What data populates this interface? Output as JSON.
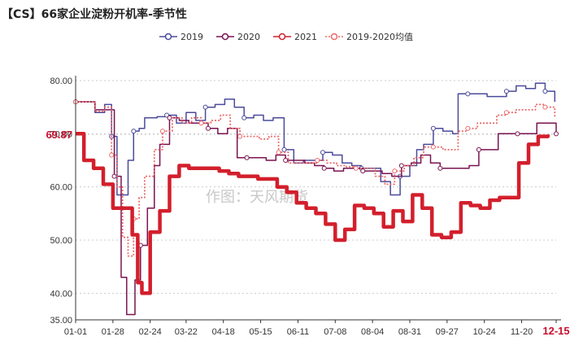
{
  "title": "【CS】66家企业淀粉开机率-季节性",
  "watermark": "作图：天风期货",
  "colors": {
    "s2019": "#4b4b9b",
    "s2020": "#7a1350",
    "s2021": "#d31f2c",
    "savg": "#ec6a6a",
    "axis": "#333333",
    "grid": "#cccccc",
    "accent": "#c8102e"
  },
  "chart_data": {
    "type": "line",
    "title": "【CS】66家企业淀粉开机率-季节性",
    "xlabel": "",
    "ylabel": "",
    "x_ticks": [
      "01-01",
      "01-28",
      "02-24",
      "03-22",
      "04-18",
      "05-15",
      "06-11",
      "07-08",
      "08-04",
      "08-31",
      "09-27",
      "10-24",
      "11-20",
      "12-15"
    ],
    "y_ticks": [
      "35.00",
      "40.00",
      "50.00",
      "60.00",
      "70.00",
      "80.00"
    ],
    "y_tick_values": [
      35,
      40,
      50,
      60,
      70,
      80
    ],
    "ylim": [
      35,
      80
    ],
    "reference_value": 69.87,
    "reference_label": "69.87",
    "legend_position": "top",
    "grid": true,
    "series": [
      {
        "name": "2019",
        "style": "step",
        "marker": "circle",
        "points": [
          [
            "01-01",
            76.0
          ],
          [
            "01-08",
            76.0
          ],
          [
            "01-15",
            74.0
          ],
          [
            "01-22",
            75.5
          ],
          [
            "01-27",
            69.5
          ],
          [
            "01-31",
            58.5
          ],
          [
            "02-04",
            58.5
          ],
          [
            "02-08",
            65.0
          ],
          [
            "02-12",
            70.5
          ],
          [
            "02-16",
            71.0
          ],
          [
            "02-20",
            73.0
          ],
          [
            "03-01",
            73.2
          ],
          [
            "03-08",
            73.5
          ],
          [
            "03-15",
            72.0
          ],
          [
            "03-22",
            74.0
          ],
          [
            "03-29",
            72.5
          ],
          [
            "04-05",
            75.0
          ],
          [
            "04-12",
            75.5
          ],
          [
            "04-19",
            76.5
          ],
          [
            "04-26",
            75.0
          ],
          [
            "05-03",
            73.0
          ],
          [
            "05-10",
            73.5
          ],
          [
            "05-17",
            72.5
          ],
          [
            "05-24",
            73.0
          ],
          [
            "06-01",
            67.0
          ],
          [
            "06-08",
            64.5
          ],
          [
            "06-15",
            65.0
          ],
          [
            "06-22",
            65.0
          ],
          [
            "06-29",
            66.5
          ],
          [
            "07-06",
            66.0
          ],
          [
            "07-13",
            64.5
          ],
          [
            "07-20",
            64.0
          ],
          [
            "07-27",
            63.5
          ],
          [
            "08-03",
            63.5
          ],
          [
            "08-10",
            61.0
          ],
          [
            "08-17",
            58.5
          ],
          [
            "08-24",
            62.0
          ],
          [
            "08-31",
            64.0
          ],
          [
            "09-05",
            67.0
          ],
          [
            "09-10",
            68.0
          ],
          [
            "09-17",
            71.0
          ],
          [
            "09-24",
            70.5
          ],
          [
            "10-01",
            70.0
          ],
          [
            "10-05",
            77.5
          ],
          [
            "10-12",
            77.5
          ],
          [
            "10-19",
            77.5
          ],
          [
            "10-26",
            77.0
          ],
          [
            "11-02",
            77.0
          ],
          [
            "11-09",
            78.0
          ],
          [
            "11-16",
            79.0
          ],
          [
            "11-23",
            78.5
          ],
          [
            "11-30",
            79.5
          ],
          [
            "12-07",
            78.0
          ],
          [
            "12-14",
            76.0
          ]
        ]
      },
      {
        "name": "2020",
        "style": "step",
        "marker": "circle",
        "points": [
          [
            "01-01",
            76.0
          ],
          [
            "01-08",
            76.0
          ],
          [
            "01-15",
            74.5
          ],
          [
            "01-22",
            74.5
          ],
          [
            "01-29",
            62.0
          ],
          [
            "02-03",
            43.0
          ],
          [
            "02-07",
            36.0
          ],
          [
            "02-13",
            42.5
          ],
          [
            "02-17",
            49.0
          ],
          [
            "02-22",
            56.0
          ],
          [
            "02-27",
            64.0
          ],
          [
            "03-03",
            68.0
          ],
          [
            "03-10",
            73.0
          ],
          [
            "03-17",
            72.5
          ],
          [
            "03-24",
            72.0
          ],
          [
            "03-31",
            72.0
          ],
          [
            "04-07",
            71.0
          ],
          [
            "04-14",
            70.0
          ],
          [
            "04-21",
            71.0
          ],
          [
            "04-28",
            65.5
          ],
          [
            "05-05",
            65.5
          ],
          [
            "05-12",
            65.5
          ],
          [
            "05-19",
            65.0
          ],
          [
            "05-26",
            66.0
          ],
          [
            "06-02",
            65.0
          ],
          [
            "06-09",
            65.0
          ],
          [
            "06-16",
            64.5
          ],
          [
            "06-23",
            64.0
          ],
          [
            "06-30",
            63.5
          ],
          [
            "07-07",
            63.0
          ],
          [
            "07-14",
            63.5
          ],
          [
            "07-21",
            63.5
          ],
          [
            "07-28",
            63.0
          ],
          [
            "08-04",
            63.0
          ],
          [
            "08-11",
            62.5
          ],
          [
            "08-18",
            62.0
          ],
          [
            "08-25",
            64.0
          ],
          [
            "09-01",
            64.5
          ],
          [
            "09-08",
            66.0
          ],
          [
            "09-15",
            64.5
          ],
          [
            "09-22",
            63.5
          ],
          [
            "09-29",
            63.5
          ],
          [
            "10-06",
            63.5
          ],
          [
            "10-13",
            64.0
          ],
          [
            "10-20",
            67.0
          ],
          [
            "10-27",
            67.0
          ],
          [
            "11-03",
            70.0
          ],
          [
            "11-10",
            70.0
          ],
          [
            "11-17",
            70.0
          ],
          [
            "11-24",
            70.0
          ],
          [
            "12-01",
            72.0
          ],
          [
            "12-08",
            72.0
          ],
          [
            "12-15",
            70.0
          ]
        ]
      },
      {
        "name": "2021",
        "style": "step",
        "marker": "none",
        "points": [
          [
            "01-01",
            70.0
          ],
          [
            "01-07",
            65.0
          ],
          [
            "01-14",
            63.5
          ],
          [
            "01-21",
            60.5
          ],
          [
            "01-28",
            56.0
          ],
          [
            "02-04",
            56.0
          ],
          [
            "02-11",
            51.0
          ],
          [
            "02-15",
            42.0
          ],
          [
            "02-18",
            40.0
          ],
          [
            "02-24",
            51.5
          ],
          [
            "03-03",
            55.5
          ],
          [
            "03-10",
            62.0
          ],
          [
            "03-17",
            64.0
          ],
          [
            "03-24",
            63.5
          ],
          [
            "04-01",
            63.5
          ],
          [
            "04-08",
            63.5
          ],
          [
            "04-15",
            63.0
          ],
          [
            "04-22",
            62.5
          ],
          [
            "04-29",
            62.0
          ],
          [
            "05-06",
            62.0
          ],
          [
            "05-13",
            61.5
          ],
          [
            "05-20",
            61.5
          ],
          [
            "05-27",
            60.0
          ],
          [
            "06-03",
            59.0
          ],
          [
            "06-10",
            57.0
          ],
          [
            "06-17",
            56.0
          ],
          [
            "06-24",
            55.0
          ],
          [
            "07-01",
            53.0
          ],
          [
            "07-08",
            50.0
          ],
          [
            "07-15",
            52.0
          ],
          [
            "07-22",
            56.5
          ],
          [
            "07-29",
            56.0
          ],
          [
            "08-05",
            55.0
          ],
          [
            "08-12",
            52.5
          ],
          [
            "08-19",
            55.5
          ],
          [
            "08-26",
            53.5
          ],
          [
            "09-02",
            58.5
          ],
          [
            "09-09",
            56.0
          ],
          [
            "09-16",
            51.0
          ],
          [
            "09-23",
            50.5
          ],
          [
            "09-30",
            51.5
          ],
          [
            "10-07",
            57.0
          ],
          [
            "10-14",
            56.5
          ],
          [
            "10-21",
            56.0
          ],
          [
            "10-28",
            57.5
          ],
          [
            "11-04",
            58.0
          ],
          [
            "11-11",
            58.0
          ],
          [
            "11-18",
            64.5
          ],
          [
            "11-25",
            68.0
          ],
          [
            "12-02",
            69.5
          ],
          [
            "12-09",
            69.87
          ]
        ]
      },
      {
        "name": "2019-2020均值",
        "style": "dotted",
        "marker": "circle",
        "points": [
          [
            "01-01",
            76.0
          ],
          [
            "01-08",
            76.0
          ],
          [
            "01-15",
            74.2
          ],
          [
            "01-22",
            75.0
          ],
          [
            "01-27",
            66.0
          ],
          [
            "01-31",
            60.0
          ],
          [
            "02-04",
            50.5
          ],
          [
            "02-08",
            47.0
          ],
          [
            "02-12",
            54.0
          ],
          [
            "02-16",
            58.0
          ],
          [
            "02-20",
            62.0
          ],
          [
            "02-27",
            67.0
          ],
          [
            "03-05",
            70.5
          ],
          [
            "03-12",
            73.0
          ],
          [
            "03-19",
            72.0
          ],
          [
            "03-26",
            73.0
          ],
          [
            "04-02",
            72.0
          ],
          [
            "04-09",
            72.5
          ],
          [
            "04-16",
            73.5
          ],
          [
            "04-23",
            71.0
          ],
          [
            "04-30",
            69.5
          ],
          [
            "05-07",
            69.5
          ],
          [
            "05-14",
            69.0
          ],
          [
            "05-21",
            69.5
          ],
          [
            "05-28",
            66.5
          ],
          [
            "06-04",
            64.5
          ],
          [
            "06-11",
            64.5
          ],
          [
            "06-18",
            64.5
          ],
          [
            "06-25",
            65.0
          ],
          [
            "07-02",
            64.5
          ],
          [
            "07-09",
            64.0
          ],
          [
            "07-16",
            63.8
          ],
          [
            "07-23",
            63.5
          ],
          [
            "07-30",
            63.5
          ],
          [
            "08-06",
            62.0
          ],
          [
            "08-13",
            60.5
          ],
          [
            "08-20",
            63.0
          ],
          [
            "08-27",
            64.0
          ],
          [
            "09-03",
            65.5
          ],
          [
            "09-10",
            67.5
          ],
          [
            "09-17",
            67.5
          ],
          [
            "09-24",
            67.0
          ],
          [
            "10-01",
            67.0
          ],
          [
            "10-05",
            70.5
          ],
          [
            "10-12",
            71.0
          ],
          [
            "10-19",
            72.0
          ],
          [
            "10-26",
            72.0
          ],
          [
            "11-02",
            73.5
          ],
          [
            "11-09",
            74.0
          ],
          [
            "11-16",
            74.5
          ],
          [
            "11-23",
            74.5
          ],
          [
            "11-30",
            75.5
          ],
          [
            "12-07",
            75.0
          ],
          [
            "12-14",
            73.0
          ]
        ]
      }
    ]
  }
}
